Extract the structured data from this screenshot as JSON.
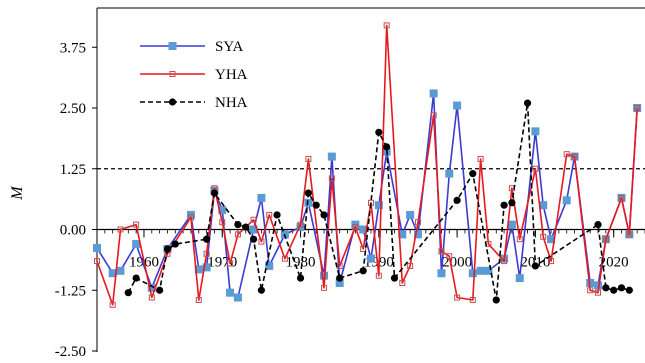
{
  "chart_data": {
    "type": "line",
    "ylabel": "M",
    "xlabel": "",
    "xlim": [
      1954,
      2024
    ],
    "ylim": [
      -2.5,
      4.5
    ],
    "y_ticks": [
      "-2.50",
      "-1.25",
      "0.00",
      "1.25",
      "2.50",
      "3.75"
    ],
    "y_tick_values": [
      -2.5,
      -1.25,
      0.0,
      1.25,
      2.5,
      3.75
    ],
    "x_ticks": [
      "1960",
      "1970",
      "1980",
      "1990",
      "2000",
      "2010",
      "2020"
    ],
    "x_tick_values": [
      1960,
      1970,
      1980,
      1990,
      2000,
      2010,
      2020
    ],
    "reference_line": 1.25,
    "legend_position": "top-left",
    "grid": false,
    "series": [
      {
        "name": "SYA",
        "color": "#3b3bd4",
        "marker": "square",
        "line": "solid",
        "x": [
          1954,
          1956,
          1957,
          1959,
          1961,
          1963,
          1966,
          1967,
          1968,
          1969,
          1970,
          1971,
          1972,
          1974,
          1975,
          1976,
          1978,
          1980,
          1981,
          1983,
          1984,
          1985,
          1987,
          1988,
          1989,
          1990,
          1991,
          1993,
          1994,
          1995,
          1997,
          1998,
          1999,
          2000,
          2002,
          2003,
          2004,
          2006,
          2007,
          2008,
          2010,
          2011,
          2012,
          2014,
          2015,
          2017,
          2018,
          2019,
          2021,
          2022,
          2023
        ],
        "y": [
          -0.38,
          -0.9,
          -0.85,
          -0.3,
          -1.2,
          -0.4,
          0.3,
          -0.82,
          -0.78,
          0.8,
          0.4,
          -1.3,
          -1.4,
          0.0,
          0.65,
          -0.75,
          -0.1,
          0.05,
          0.55,
          -0.95,
          1.5,
          -1.1,
          0.1,
          0.0,
          -0.6,
          0.5,
          1.6,
          -0.1,
          0.3,
          -0.1,
          2.8,
          -0.9,
          1.15,
          2.55,
          -0.9,
          -0.85,
          -0.85,
          -0.6,
          0.1,
          -1.0,
          2.02,
          0.5,
          -0.2,
          0.6,
          1.5,
          -1.1,
          -1.15,
          -0.2,
          0.65,
          -0.1,
          2.5
        ]
      },
      {
        "name": "YHA",
        "color": "#e8191e",
        "marker": "cross",
        "line": "solid",
        "x": [
          1954,
          1956,
          1957,
          1959,
          1961,
          1963,
          1966,
          1967,
          1968,
          1969,
          1970,
          1971,
          1972,
          1974,
          1975,
          1976,
          1978,
          1980,
          1981,
          1983,
          1984,
          1985,
          1987,
          1988,
          1989,
          1990,
          1991,
          1993,
          1994,
          1995,
          1997,
          1998,
          1999,
          2000,
          2002,
          2003,
          2004,
          2006,
          2007,
          2008,
          2010,
          2011,
          2012,
          2014,
          2015,
          2017,
          2018,
          2019,
          2021,
          2022,
          2023
        ],
        "y": [
          -0.65,
          -1.55,
          0.0,
          0.1,
          -1.4,
          -0.5,
          0.25,
          -1.45,
          -0.5,
          0.85,
          0.15,
          -0.7,
          -0.1,
          0.2,
          -0.25,
          0.3,
          -0.6,
          0.1,
          1.45,
          -1.2,
          1.05,
          -0.75,
          0.05,
          -0.4,
          0.55,
          -0.95,
          4.2,
          -1.1,
          -0.75,
          0.15,
          2.35,
          -0.45,
          -0.55,
          -1.4,
          -1.45,
          1.45,
          -0.3,
          -0.65,
          0.85,
          -0.2,
          1.25,
          -0.15,
          -0.65,
          1.55,
          1.5,
          -1.25,
          -1.3,
          -0.2,
          0.65,
          -0.1,
          2.5
        ]
      },
      {
        "name": "NHA",
        "color": "#000000",
        "marker": "circle",
        "line": "dashed",
        "x": [
          1958,
          1959,
          1962,
          1963,
          1964,
          1968,
          1969,
          1972,
          1973,
          1974,
          1975,
          1977,
          1980,
          1981,
          1982,
          1983,
          1985,
          1988,
          1990,
          1991,
          1992,
          2000,
          2002,
          2005,
          2006,
          2007,
          2009,
          2010,
          2018,
          2019,
          2020,
          2021,
          2022
        ],
        "y": [
          -1.3,
          -1.0,
          -1.25,
          -0.4,
          -0.3,
          -0.2,
          0.75,
          0.1,
          0.05,
          -0.2,
          -1.25,
          0.3,
          -1.0,
          0.75,
          0.5,
          0.3,
          -1.0,
          -0.85,
          2.0,
          1.7,
          -1.0,
          0.6,
          1.15,
          -1.45,
          0.5,
          0.55,
          2.6,
          -0.75,
          0.1,
          -1.2,
          -1.25,
          -1.2,
          -1.25
        ]
      }
    ]
  }
}
